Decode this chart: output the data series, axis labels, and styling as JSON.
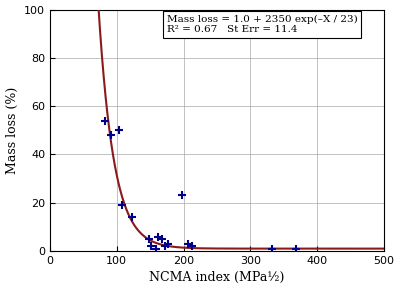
{
  "title": "",
  "xlabel": "NCMA index (MPa½)",
  "ylabel": "Mass loss (%)",
  "xlim": [
    0,
    500
  ],
  "ylim": [
    0,
    100
  ],
  "xticks": [
    0,
    100,
    200,
    300,
    400,
    500
  ],
  "yticks": [
    0,
    20,
    40,
    60,
    80,
    100
  ],
  "equation_line1": "Mass loss = 1.0 + 2350 exp(–X / 23)",
  "equation_line2": "R² = 0.67   St Err = 11.4",
  "curve_a": 1.0,
  "curve_b": 2350,
  "curve_c": 23,
  "curve_color": "#8B1A1A",
  "curve_xstart": 72,
  "curve_xend": 500,
  "data_points": [
    [
      83,
      54
    ],
    [
      92,
      48
    ],
    [
      103,
      50
    ],
    [
      108,
      19
    ],
    [
      123,
      14
    ],
    [
      148,
      5
    ],
    [
      152,
      2
    ],
    [
      158,
      1
    ],
    [
      162,
      6
    ],
    [
      167,
      5
    ],
    [
      172,
      2
    ],
    [
      177,
      3
    ],
    [
      197,
      23
    ],
    [
      207,
      3
    ],
    [
      212,
      2
    ],
    [
      333,
      1
    ],
    [
      368,
      1
    ]
  ],
  "point_color": "#00008B",
  "point_marker": "+",
  "point_size": 6,
  "point_linewidth": 1.5,
  "bg_color": "#ffffff",
  "grid_color": "#aaaaaa",
  "annotation_box_color": "#ffffff",
  "annotation_box_edge": "#000000",
  "fig_width": 4.0,
  "fig_height": 2.9,
  "dpi": 100
}
